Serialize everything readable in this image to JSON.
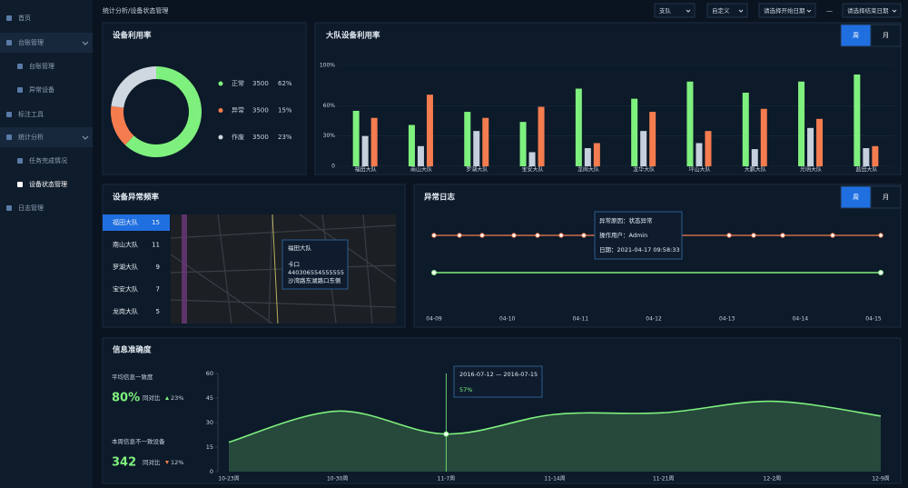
{
  "menu": [
    "首页",
    "台账管理",
    "台账管理",
    "异常设备",
    "标注工具",
    "统计分析",
    "任务完成情况",
    "设备状态管理",
    "日志管理"
  ],
  "header": {
    "breadcrumb": "统计分析/设备状态管理",
    "filters": [
      "支队",
      "自定义",
      "请选择开始日期",
      "—",
      "请选择结束日期"
    ]
  },
  "chart_data": [
    {
      "type": "pie",
      "title": "设备利用率",
      "categories": [
        "正常",
        "异常",
        "作废"
      ],
      "values": [
        62,
        15,
        23
      ],
      "value_labels": [
        "62%",
        "15%",
        "23%"
      ],
      "counts": [
        "3500",
        "3500",
        "3500"
      ],
      "colors": [
        "#7ef07e",
        "#f47c4f",
        "#cfd8e0"
      ]
    },
    {
      "type": "bar",
      "title": "大队设备利用率",
      "tabs": [
        "周",
        "月"
      ],
      "categories": [
        "福田大队",
        "南山大队",
        "罗湖大队",
        "宝安大队",
        "龙岗大队",
        "龙华大队",
        "坪山大队",
        "大鹏大队",
        "光明大队",
        "盐田大队"
      ],
      "series": [
        {
          "color": "#7ef07e",
          "values": [
            55,
            41,
            54,
            44,
            77,
            67,
            84,
            73,
            84,
            91
          ]
        },
        {
          "color": "#c5d0dc",
          "values": [
            30,
            20,
            35,
            14,
            18,
            35,
            23,
            17,
            38,
            18
          ]
        },
        {
          "color": "#f47c4f",
          "values": [
            48,
            71,
            48,
            59,
            23,
            54,
            35,
            57,
            47,
            20
          ]
        }
      ],
      "ylim": [
        0,
        100
      ],
      "yticks": [
        0,
        {
          "value": 30,
          "label": "30%"
        },
        {
          "value": 60,
          "label": "60%"
        },
        {
          "value": 100,
          "label": "100%"
        }
      ]
    },
    {
      "type": "area",
      "title": "信息准确度",
      "categories": [
        "10-23周",
        "10-30周",
        "11-7周",
        "11-14周",
        "11-21周",
        "12-2周",
        "12-9周"
      ],
      "values": [
        18,
        37,
        23,
        35,
        36,
        43,
        34
      ],
      "color": "#7ef07e",
      "ylim": [
        0,
        60
      ],
      "yticks": [
        0,
        15,
        30,
        45,
        60
      ],
      "tooltip": {
        "range": "2016-07-12 — 2016-07-15",
        "value": "57%"
      },
      "stats": [
        {
          "label": "平均信息一致度",
          "value": "80%",
          "compare": "同对比",
          "change": "23%"
        },
        {
          "label": "本周信息不一致设备",
          "value": "342",
          "compare": "同对比",
          "change": "12%"
        }
      ]
    }
  ],
  "abnormal_frequency": {
    "title": "设备异常频率",
    "rows": [
      {
        "name": "福田大队",
        "count": "15"
      },
      {
        "name": "南山大队",
        "count": "11"
      },
      {
        "name": "罗湖大队",
        "count": "9"
      },
      {
        "name": "宝安大队",
        "count": "7"
      },
      {
        "name": "龙岗大队",
        "count": "5"
      }
    ],
    "map_tooltip": [
      "福田大队",
      "卡口",
      "440306554555555",
      "沙湾路东湖路口东侧"
    ]
  },
  "abnormal_log": {
    "title": "异常日志",
    "tabs": [
      "周",
      "月"
    ],
    "tooltip": [
      "异常原因：状态异常",
      "操作用户：Admin",
      "日期：2021-04-17 09:58:33"
    ],
    "dates": [
      "04-09",
      "04-10",
      "04-11",
      "04-12",
      "04-13",
      "04-14",
      "04-15"
    ]
  }
}
